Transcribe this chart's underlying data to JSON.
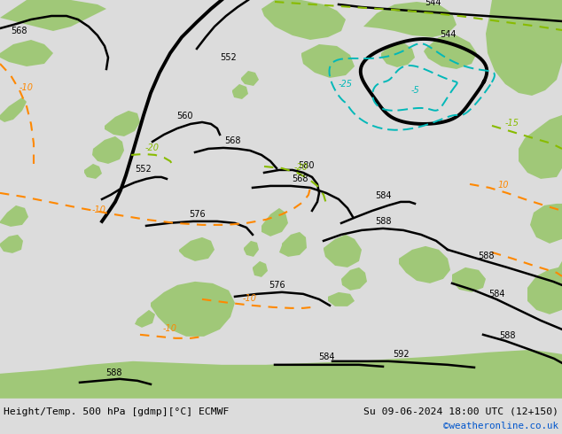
{
  "title_left": "Height/Temp. 500 hPa [gdmp][°C] ECMWF",
  "title_right": "Su 09-06-2024 18:00 UTC (12+150)",
  "copyright": "©weatheronline.co.uk",
  "bg_color": "#c8c8c8",
  "green_color": "#a0c878",
  "sea_gray": "#c8c8c8",
  "bottom_bar_color": "#dcdcdc",
  "contour_black": "#000000",
  "contour_orange": "#ff8800",
  "contour_cyan": "#00b8b8",
  "contour_yg": "#88bb00",
  "text_blue": "#0055cc",
  "fig_width": 6.34,
  "fig_height": 4.9,
  "dpi": 100
}
